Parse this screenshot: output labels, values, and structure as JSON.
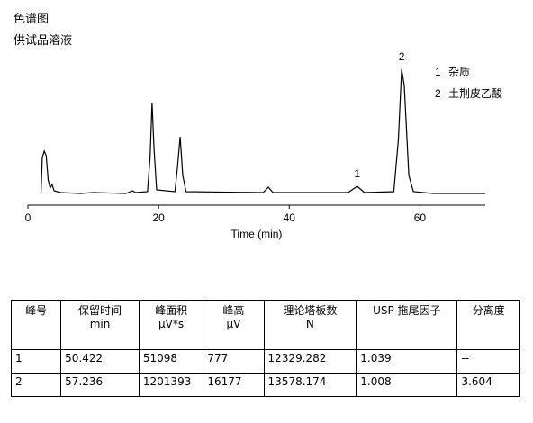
{
  "header": {
    "title": "色谱图",
    "subtitle": "供试品溶液"
  },
  "chart_data": {
    "type": "line",
    "xlabel": "Time (min)",
    "xlim": [
      0,
      70
    ],
    "xticks": [
      0,
      20,
      40,
      60
    ],
    "ylim": [
      -13,
      150
    ],
    "series": [
      {
        "color": "#000000",
        "x": [
          2.0,
          2.2,
          2.5,
          2.8,
          3.1,
          3.4,
          3.7,
          4.0,
          5,
          8,
          10,
          15,
          16,
          16.5,
          18.3,
          18.7,
          19.0,
          19.3,
          19.7,
          22.5,
          22.9,
          23.3,
          23.7,
          24.2,
          36,
          36.8,
          37.5,
          49,
          50.4,
          51.5,
          56,
          56.7,
          57.2,
          57.6,
          58.3,
          59,
          62,
          70
        ],
        "values": [
          0,
          40,
          47,
          42,
          15,
          6,
          10,
          3,
          1,
          0,
          1,
          0,
          3,
          1,
          2,
          40,
          101,
          50,
          4,
          2,
          30,
          63,
          20,
          2,
          1,
          7,
          1,
          1,
          8,
          1,
          2,
          60,
          138,
          120,
          20,
          2,
          0,
          0
        ]
      }
    ],
    "annotations": [
      {
        "text": "1",
        "x": 50.4,
        "y": 18
      },
      {
        "text": "2",
        "x": 57.2,
        "y": 148
      }
    ],
    "legend": [
      {
        "label": "1",
        "text": "杂质"
      },
      {
        "label": "2",
        "text": "土荆皮乙酸"
      }
    ]
  },
  "table": {
    "header": [
      [
        "峰号"
      ],
      [
        "保留时间",
        "min"
      ],
      [
        "峰面积",
        "µV*s"
      ],
      [
        "峰高",
        "µV"
      ],
      [
        "理论塔板数",
        "N"
      ],
      [
        "USP 拖尾因子"
      ],
      [
        "分离度"
      ]
    ],
    "rows": [
      [
        "1",
        "50.422",
        "51098",
        "777",
        "12329.282",
        "1.039",
        "--"
      ],
      [
        "2",
        "57.236",
        "1201393",
        "16177",
        "13578.174",
        "1.008",
        "3.604"
      ]
    ]
  }
}
